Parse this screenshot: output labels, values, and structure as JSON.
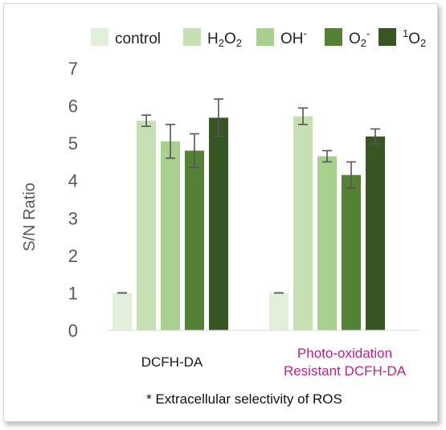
{
  "chart_data": {
    "type": "bar",
    "categories": [
      "DCFH-DA",
      "Photo-oxidation Resistant DCFH-DA"
    ],
    "category_label_lines": [
      [
        "DCFH-DA"
      ],
      [
        "Photo-oxidation",
        "Resistant DCFH-DA"
      ]
    ],
    "category_label_colors": [
      "#1a1a1a",
      "#c0208a"
    ],
    "series": [
      {
        "name": "control",
        "legend": {
          "base": "control",
          "sub": "",
          "sup": ""
        },
        "color": "#e2efda",
        "values": [
          1.0,
          1.0
        ],
        "errors": [
          0.0,
          0.0
        ]
      },
      {
        "name": "H2O2",
        "legend": {
          "base": "H",
          "sub": "2",
          "mid": "O",
          "sub2": "2"
        },
        "color": "#c6e0b4",
        "values": [
          5.6,
          5.72
        ],
        "errors": [
          0.15,
          0.22
        ]
      },
      {
        "name": "OH-",
        "legend": {
          "base": "OH",
          "sup": "-"
        },
        "color": "#a9d08e",
        "values": [
          5.05,
          4.65
        ],
        "errors": [
          0.45,
          0.15
        ]
      },
      {
        "name": "O2-",
        "legend": {
          "base": "O",
          "sub": "2",
          "sup": "-"
        },
        "color": "#548235",
        "values": [
          4.8,
          4.15
        ],
        "errors": [
          0.45,
          0.35
        ]
      },
      {
        "name": "1O2",
        "legend": {
          "pre_sup": "1",
          "base": "O",
          "sub": "2"
        },
        "color": "#375623",
        "values": [
          5.68,
          5.18
        ],
        "errors": [
          0.5,
          0.2
        ]
      }
    ],
    "ylabel": "S/N Ratio",
    "ylim": [
      0,
      7
    ],
    "yticks": [
      0,
      1,
      2,
      3,
      4,
      5,
      6,
      7
    ],
    "grid": false,
    "legend_position": "top",
    "footnote": "* Extracellular selectivity of ROS"
  }
}
